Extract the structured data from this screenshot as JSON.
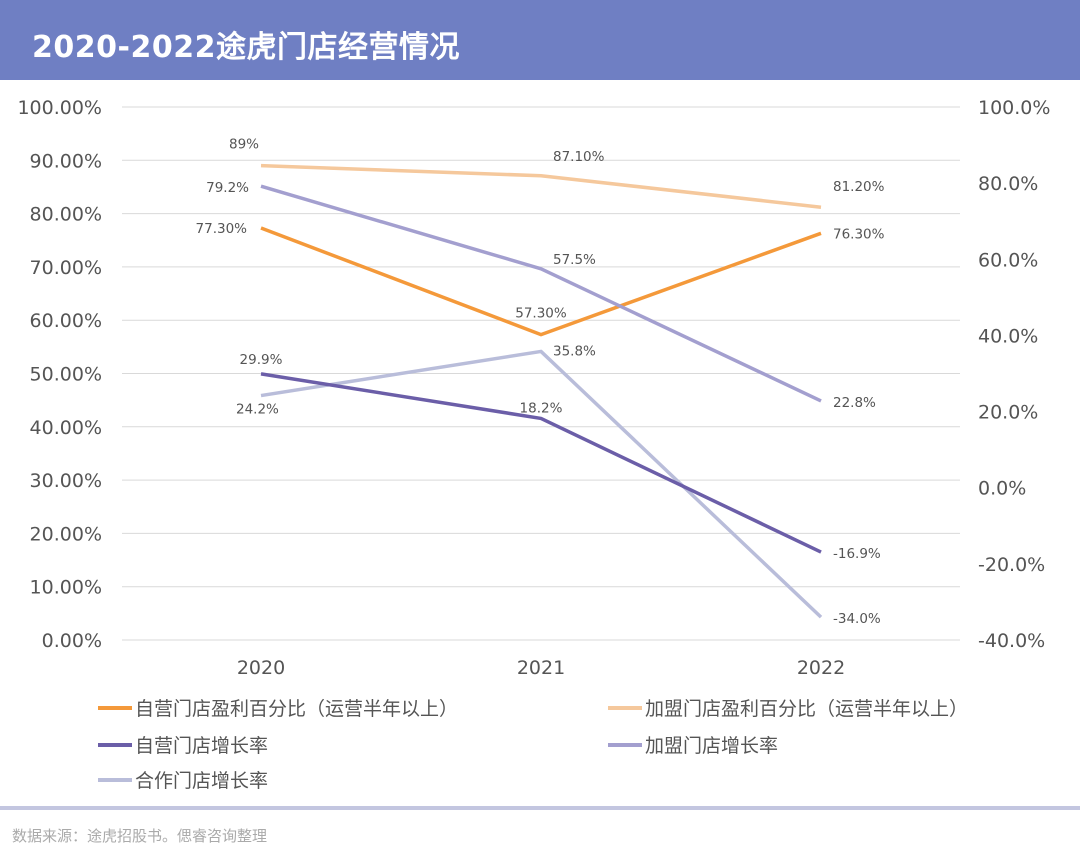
{
  "header": {
    "title": "2020-2022途虎门店经营情况"
  },
  "footer": {
    "source": "数据来源：途虎招股书。偲睿咨询整理"
  },
  "chart_data": {
    "type": "line",
    "title": "2020-2022途虎门店经营情况",
    "categories": [
      "2020",
      "2021",
      "2022"
    ],
    "y_left": {
      "range": [
        0,
        100
      ],
      "ticks": [
        "0.00%",
        "10.00%",
        "20.00%",
        "30.00%",
        "40.00%",
        "50.00%",
        "60.00%",
        "70.00%",
        "80.00%",
        "90.00%",
        "100.00%"
      ]
    },
    "y_right": {
      "range": [
        -40,
        100
      ],
      "ticks": [
        "-40.0%",
        "-20.0%",
        "0.0%",
        "20.0%",
        "40.0%",
        "60.0%",
        "80.0%",
        "100.0%"
      ]
    },
    "grid": true,
    "legend_position": "bottom",
    "series": [
      {
        "name": "自营门店盈利百分比（运营半年以上）",
        "axis": "left",
        "color": "#f4993a",
        "values": [
          77.3,
          57.3,
          76.3
        ],
        "labels": [
          "77.30%",
          "57.30%",
          "76.30%"
        ]
      },
      {
        "name": "加盟门店盈利百分比（运营半年以上）",
        "axis": "left",
        "color": "#f5c89c",
        "values": [
          89,
          87.1,
          81.2
        ],
        "labels": [
          "89%",
          "87.10%",
          "81.20%"
        ]
      },
      {
        "name": "自营门店增长率",
        "axis": "right",
        "color": "#6b5ea8",
        "values": [
          29.9,
          18.2,
          -16.9
        ],
        "labels": [
          "29.9%",
          "18.2%",
          "-16.9%"
        ]
      },
      {
        "name": "加盟门店增长率",
        "axis": "right",
        "color": "#a39fcf",
        "values": [
          79.2,
          57.5,
          22.8
        ],
        "labels": [
          "79.2%",
          "57.5%",
          "22.8%"
        ]
      },
      {
        "name": "合作门店增长率",
        "axis": "right",
        "color": "#b9bdda",
        "values": [
          24.2,
          35.8,
          -34.0
        ],
        "labels": [
          "24.2%",
          "35.8%",
          "-34.0%"
        ]
      }
    ]
  }
}
